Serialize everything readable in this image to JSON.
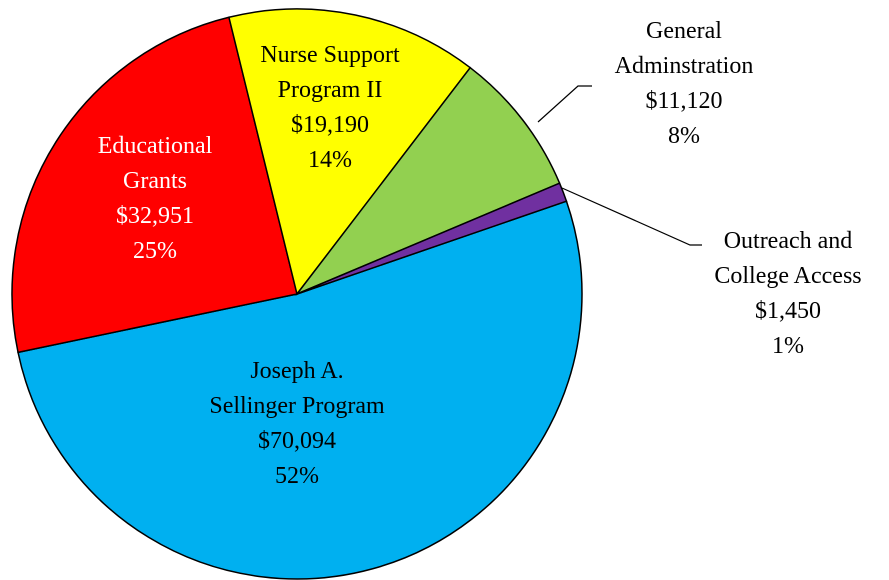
{
  "chart_data": {
    "type": "pie",
    "categories": [
      "Joseph A.\nSellinger Program",
      "Educational\nGrants",
      "Nurse Support\nProgram II",
      "General\nAdminstration",
      "Outreach and\nCollege Access"
    ],
    "values": [
      70094,
      32951,
      19190,
      11120,
      1450
    ],
    "value_labels": [
      "$70,094",
      "$32,951",
      "$19,190",
      "$11,120",
      "$1,450"
    ],
    "percent_labels": [
      "52%",
      "25%",
      "14%",
      "8%",
      "1%"
    ],
    "colors": [
      "#00b0f0",
      "#ff0000",
      "#ffff00",
      "#92d050",
      "#7030a0"
    ]
  }
}
